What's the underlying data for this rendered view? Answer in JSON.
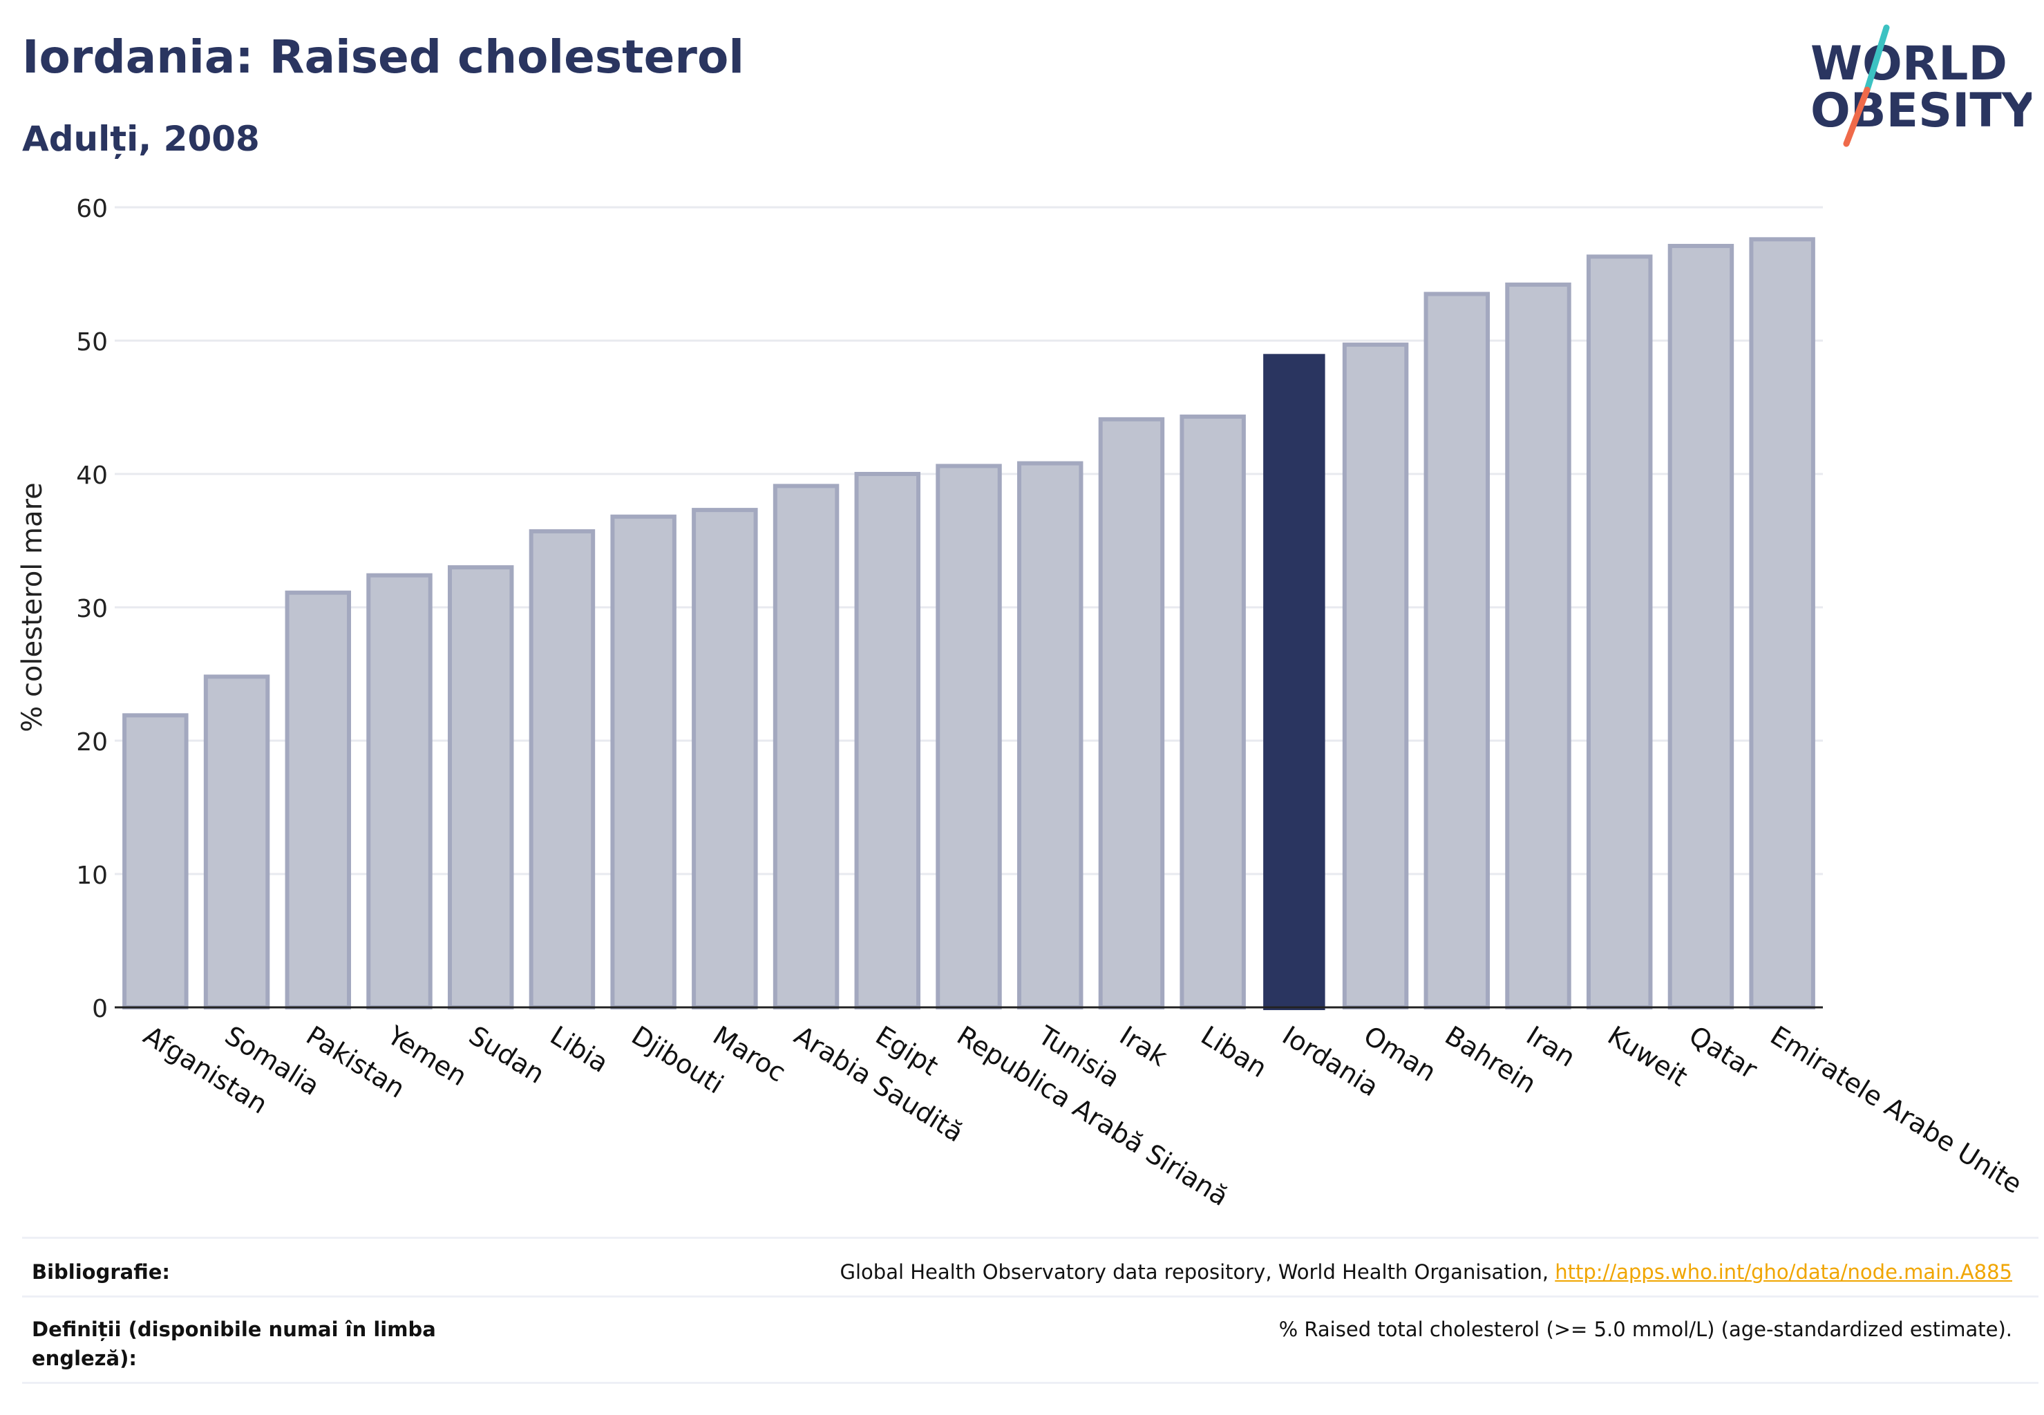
{
  "header": {
    "title": "Iordania: Raised cholesterol",
    "subtitle": "Adulți, 2008"
  },
  "logo": {
    "line1": "WORLD",
    "line2": "OBESITY",
    "colors": {
      "text": "#2a3560",
      "slash_top": "#3cc2c2",
      "slash_bottom": "#ef6a4a"
    }
  },
  "chart_data": {
    "type": "bar",
    "ylabel": "% colesterol mare",
    "xlabel": "",
    "ylim": [
      0,
      60
    ],
    "yticks": [
      0,
      10,
      20,
      30,
      40,
      50,
      60
    ],
    "grid": true,
    "highlight": "Iordania",
    "colors": {
      "bar": "#bfc3d0",
      "bar_border": "#a3a8bf",
      "highlight": "#2a3560",
      "grid": "#e8eaef",
      "axis": "#222222"
    },
    "categories": [
      "Afganistan",
      "Somalia",
      "Pakistan",
      "Yemen",
      "Sudan",
      "Libia",
      "Djibouti",
      "Maroc",
      "Arabia Saudită",
      "Egipt",
      "Republica Arabă Siriană",
      "Tunisia",
      "Irak",
      "Liban",
      "Iordania",
      "Oman",
      "Bahrein",
      "Iran",
      "Kuweit",
      "Qatar",
      "Emiratele Arabe Unite"
    ],
    "values": [
      21.9,
      24.8,
      31.1,
      32.4,
      33.0,
      35.7,
      36.8,
      37.3,
      39.1,
      40.0,
      40.6,
      40.8,
      44.1,
      44.3,
      49.0,
      49.7,
      53.5,
      54.2,
      56.3,
      57.1,
      57.6
    ]
  },
  "footer": {
    "bibliography_label": "Bibliografie:",
    "bibliography_text": "Global Health Observatory data repository, World Health Organisation, ",
    "bibliography_link": "http://apps.who.int/gho/data/node.main.A885",
    "definitions_label": "Definiții (disponibile numai în limba engleză):",
    "definitions_text": "% Raised total cholesterol (>= 5.0 mmol/L) (age-standardized estimate)."
  }
}
